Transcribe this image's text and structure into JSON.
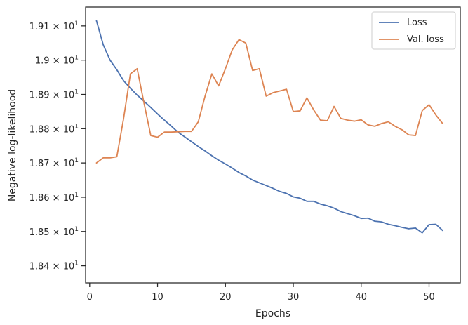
{
  "chart_data": {
    "type": "line",
    "xlabel": "Epochs",
    "ylabel": "Negative log-likelihood",
    "xlim": [
      -0.6,
      54.6
    ],
    "ylim": [
      18.35,
      19.155
    ],
    "x_ticks": [
      0,
      10,
      20,
      30,
      40,
      50
    ],
    "y_ticks": [
      {
        "value": 18.4,
        "mantissa": "1.84",
        "exponent": "1"
      },
      {
        "value": 18.5,
        "mantissa": "1.85",
        "exponent": "1"
      },
      {
        "value": 18.6,
        "mantissa": "1.86",
        "exponent": "1"
      },
      {
        "value": 18.7,
        "mantissa": "1.87",
        "exponent": "1"
      },
      {
        "value": 18.8,
        "mantissa": "1.88",
        "exponent": "1"
      },
      {
        "value": 18.9,
        "mantissa": "1.89",
        "exponent": "1"
      },
      {
        "value": 19.0,
        "mantissa": "1.9",
        "exponent": "1"
      },
      {
        "value": 19.1,
        "mantissa": "1.91",
        "exponent": "1"
      }
    ],
    "grid": false,
    "legend_position": "top-right",
    "x": [
      1,
      2,
      3,
      4,
      5,
      6,
      7,
      8,
      9,
      10,
      11,
      12,
      13,
      14,
      15,
      16,
      17,
      18,
      19,
      20,
      21,
      22,
      23,
      24,
      25,
      26,
      27,
      28,
      29,
      30,
      31,
      32,
      33,
      34,
      35,
      36,
      37,
      38,
      39,
      40,
      41,
      42,
      43,
      44,
      45,
      46,
      47,
      48,
      49,
      50,
      51,
      52
    ],
    "series": [
      {
        "name": "Loss",
        "color": "#4c72b0",
        "values": [
          19.115,
          19.045,
          19.0,
          18.972,
          18.94,
          18.918,
          18.898,
          18.88,
          18.862,
          18.843,
          18.825,
          18.808,
          18.79,
          18.776,
          18.762,
          18.748,
          18.735,
          18.721,
          18.708,
          18.697,
          18.685,
          18.672,
          18.662,
          18.65,
          18.642,
          18.634,
          18.626,
          18.617,
          18.611,
          18.601,
          18.597,
          18.588,
          18.588,
          18.58,
          18.575,
          18.568,
          18.558,
          18.552,
          18.546,
          18.538,
          18.539,
          18.53,
          18.528,
          18.521,
          18.517,
          18.512,
          18.508,
          18.51,
          18.496,
          18.52,
          18.521,
          18.503
        ]
      },
      {
        "name": "Val. loss",
        "color": "#dd8452",
        "values": [
          18.7,
          18.715,
          18.715,
          18.718,
          18.83,
          18.96,
          18.975,
          18.875,
          18.78,
          18.775,
          18.79,
          18.79,
          18.791,
          18.792,
          18.792,
          18.82,
          18.895,
          18.96,
          18.925,
          18.975,
          19.03,
          19.06,
          19.05,
          18.97,
          18.975,
          18.895,
          18.905,
          18.91,
          18.915,
          18.85,
          18.852,
          18.89,
          18.855,
          18.825,
          18.823,
          18.865,
          18.83,
          18.825,
          18.822,
          18.826,
          18.811,
          18.807,
          18.815,
          18.82,
          18.807,
          18.797,
          18.782,
          18.78,
          18.853,
          18.87,
          18.84,
          18.815
        ]
      }
    ]
  }
}
